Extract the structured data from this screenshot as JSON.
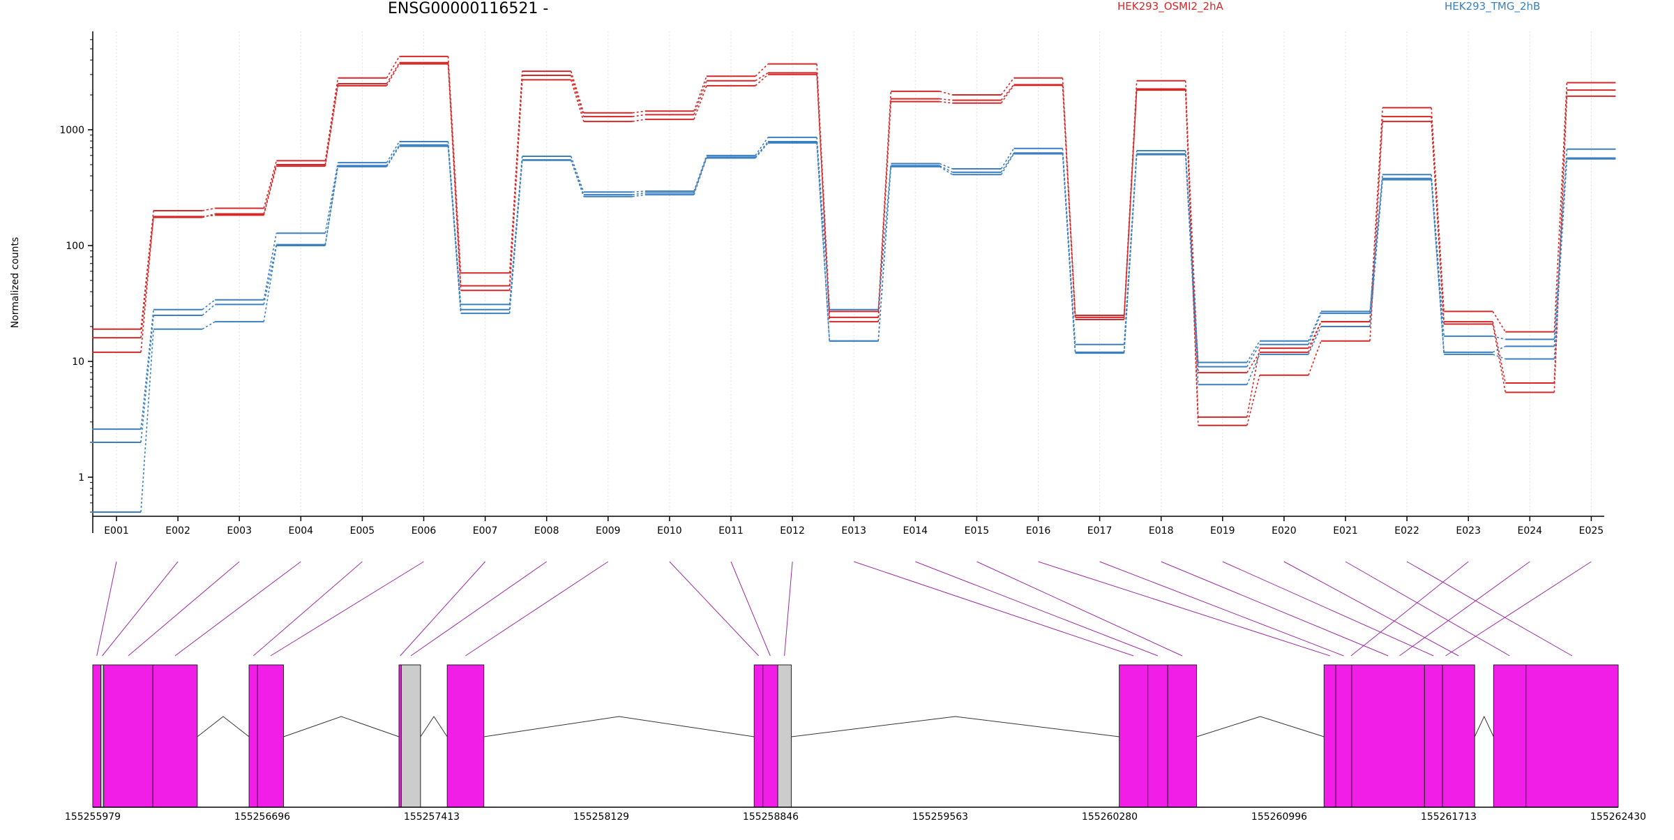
{
  "chart_data": {
    "type": "line",
    "title": "ENSG00000116521 -",
    "ylabel": "Normalized counts",
    "xlabel": "",
    "yscale": "log",
    "ylim": [
      0.45,
      6000
    ],
    "yticks": [
      1,
      10,
      100,
      1000
    ],
    "ytick_labels": [
      "1",
      "10",
      "100",
      "1000"
    ],
    "grid": "vertical dotted",
    "legend_placement": "top",
    "colors": {
      "HEK293_OSMI2_2hA": "#d62728",
      "HEK293_TMG_2hB": "#3a7fbf",
      "exon": "#f01ee6",
      "exon_other": "#cccccc",
      "connector": "#9c2aa0"
    },
    "categories": [
      "E001",
      "E002",
      "E003",
      "E004",
      "E005",
      "E006",
      "E007",
      "E008",
      "E009",
      "E010",
      "E011",
      "E012",
      "E013",
      "E014",
      "E015",
      "E016",
      "E017",
      "E018",
      "E019",
      "E020",
      "E021",
      "E022",
      "E023",
      "E024",
      "E025"
    ],
    "series": [
      {
        "name": "HEK293_OSMI2_2hA",
        "group": "HEK293_OSMI2_2hA",
        "values": [
          19,
          200,
          210,
          540,
          2800,
          4300,
          58,
          3200,
          1400,
          1450,
          2900,
          3700,
          27,
          2150,
          2000,
          2800,
          25,
          2650,
          3.3,
          13,
          22,
          1550,
          27,
          18,
          2550
        ]
      },
      {
        "name": "",
        "group": "HEK293_OSMI2_2hA",
        "values": [
          16,
          175,
          188,
          500,
          2500,
          3800,
          45,
          2950,
          1300,
          1350,
          2650,
          3100,
          24,
          1850,
          1800,
          2450,
          24,
          2250,
          8,
          12,
          22,
          1300,
          22,
          6.5,
          2200
        ]
      },
      {
        "name": "",
        "group": "HEK293_OSMI2_2hA",
        "values": [
          12,
          178,
          183,
          485,
          2400,
          3700,
          41,
          2700,
          1180,
          1230,
          2400,
          3000,
          22,
          1750,
          1700,
          2420,
          23,
          2200,
          2.8,
          7.6,
          15,
          1180,
          21,
          5.4,
          1950
        ]
      },
      {
        "name": "HEK293_TMG_2hB",
        "group": "HEK293_TMG_2hB",
        "values": [
          2.6,
          28,
          34,
          128,
          520,
          790,
          31,
          590,
          290,
          295,
          600,
          860,
          28,
          510,
          460,
          690,
          14,
          660,
          9.8,
          15,
          27,
          410,
          16.5,
          15.5,
          680
        ]
      },
      {
        "name": "",
        "group": "HEK293_TMG_2hB",
        "values": [
          2.0,
          25,
          31,
          102,
          490,
          740,
          28,
          550,
          275,
          285,
          580,
          790,
          15,
          490,
          430,
          630,
          12,
          620,
          9,
          14,
          26,
          380,
          12,
          13.5,
          570
        ]
      },
      {
        "name": "",
        "group": "HEK293_TMG_2hB",
        "values": [
          0.5,
          19,
          22,
          100,
          480,
          720,
          26,
          545,
          265,
          275,
          570,
          770,
          15,
          480,
          410,
          620,
          11.8,
          610,
          6.3,
          11.5,
          20,
          370,
          11.5,
          10.5,
          560
        ]
      }
    ],
    "gene_model": {
      "coordinate_ticks": [
        "155255979",
        "155256696",
        "155257413",
        "155258129",
        "155258846",
        "155259563",
        "155260280",
        "155260996",
        "155261713",
        "155262430"
      ],
      "range": [
        155255979,
        155262430
      ],
      "exons": [
        {
          "start": 155255979,
          "end": 155256013,
          "color": "exon"
        },
        {
          "start": 155256013,
          "end": 155256025,
          "color": "exon_other"
        },
        {
          "start": 155256025,
          "end": 155256233,
          "color": "exon"
        },
        {
          "start": 155256233,
          "end": 155256421,
          "color": "exon"
        },
        {
          "start": 155256640,
          "end": 155256676,
          "color": "exon"
        },
        {
          "start": 155256676,
          "end": 155256786,
          "color": "exon"
        },
        {
          "start": 155257274,
          "end": 155257284,
          "color": "exon"
        },
        {
          "start": 155257284,
          "end": 155257365,
          "color": "exon_other"
        },
        {
          "start": 155257478,
          "end": 155257633,
          "color": "exon"
        },
        {
          "start": 155258776,
          "end": 155258813,
          "color": "exon"
        },
        {
          "start": 155258813,
          "end": 155258876,
          "color": "exon"
        },
        {
          "start": 155258876,
          "end": 155258933,
          "color": "exon_other"
        },
        {
          "start": 155260320,
          "end": 155260441,
          "color": "exon"
        },
        {
          "start": 155260441,
          "end": 155260525,
          "color": "exon"
        },
        {
          "start": 155260525,
          "end": 155260647,
          "color": "exon"
        },
        {
          "start": 155261186,
          "end": 155261236,
          "color": "exon"
        },
        {
          "start": 155261236,
          "end": 155261303,
          "color": "exon"
        },
        {
          "start": 155261303,
          "end": 155261611,
          "color": "exon"
        },
        {
          "start": 155261611,
          "end": 155261687,
          "color": "exon"
        },
        {
          "start": 155261687,
          "end": 155261823,
          "color": "exon"
        },
        {
          "start": 155261903,
          "end": 155262040,
          "color": "exon"
        },
        {
          "start": 155262040,
          "end": 155262430,
          "color": "exon"
        }
      ],
      "bin_genomic_mid": [
        155255996,
        155256019,
        155256129,
        155256327,
        155256658,
        155256731,
        155257279,
        155257324,
        155257555,
        155258795,
        155258844,
        155258904,
        155260380,
        155260483,
        155260586,
        155261211,
        155261269,
        155261457,
        155261649,
        155261755,
        155261971,
        155262235,
        155261300,
        155261505,
        155261700
      ]
    }
  }
}
